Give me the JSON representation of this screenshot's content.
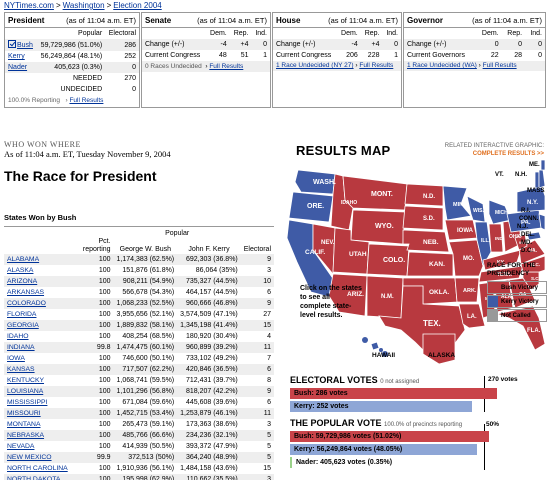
{
  "breadcrumb": {
    "site": "NYTimes.com",
    "section": "Washington",
    "page": "Election 2004",
    "sep": ">"
  },
  "president_box": {
    "title": "President",
    "as_of": "(as of 11:04 a.m. ET)",
    "col_popular": "Popular",
    "col_electoral": "Electoral",
    "rows": [
      {
        "name": "Bush",
        "popular": "59,729,986 (51.0%)",
        "electoral": "286",
        "winner": true
      },
      {
        "name": "Kerry",
        "popular": "56,249,864 (48.1%)",
        "electoral": "252"
      },
      {
        "name": "Nader",
        "popular": "405,623 (0.3%)",
        "electoral": "0"
      }
    ],
    "needed_label": "NEEDED",
    "needed": "270",
    "undecided_label": "UNDECIDED",
    "undecided": "0",
    "reporting": "100.0% Reporting",
    "full_results": "Full Results"
  },
  "senate_box": {
    "title": "Senate",
    "as_of": "(as of 11:04 a.m. ET)",
    "cols": [
      "Dem.",
      "Rep.",
      "Ind."
    ],
    "change_label": "Change (+/-)",
    "change": [
      "-4",
      "+4",
      "0"
    ],
    "current_label": "Current Congress",
    "current": [
      "48",
      "51",
      "1"
    ],
    "races_undecided": "0 Races Undecided",
    "full_results": "Full Results"
  },
  "house_box": {
    "title": "House",
    "as_of": "(as of 11:04 a.m. ET)",
    "cols": [
      "Dem.",
      "Rep.",
      "Ind."
    ],
    "change_label": "Change (+/-)",
    "change": [
      "-4",
      "+4",
      "0"
    ],
    "current_label": "Current Congress",
    "current": [
      "206",
      "228",
      "1"
    ],
    "races_undecided": "1 Race Undecided (NY 27)",
    "full_results": "Full Results"
  },
  "governor_box": {
    "title": "Governor",
    "as_of": "(as of 11:04 a.m. ET)",
    "cols": [
      "Dem.",
      "Rep.",
      "Ind."
    ],
    "change_label": "Change (+/-)",
    "change": [
      "0",
      "0",
      "0"
    ],
    "current_label": "Current Governors",
    "current": [
      "22",
      "28",
      "0"
    ],
    "races_undecided": "1 Race Undecided (WA)",
    "full_results": "Full Results"
  },
  "who_won": {
    "label": "WHO WON WHERE",
    "as_of": "As of 11:04 a.m. ET, Tuesday November 9, 2004",
    "title": "The Race for President",
    "states_label": "States Won by Bush"
  },
  "state_table": {
    "popular_header": "Popular",
    "headers": [
      "",
      "Pct. reporting",
      "George W. Bush",
      "John F. Kerry",
      "Electoral"
    ],
    "rows": [
      [
        "ALABAMA",
        "100",
        "1,174,383 (62.5%)",
        "692,303 (36.8%)",
        "9"
      ],
      [
        "ALASKA",
        "100",
        "151,876 (61.8%)",
        "86,064 (35%)",
        "3"
      ],
      [
        "ARIZONA",
        "100",
        "908,211 (54.9%)",
        "735,327 (44.5%)",
        "10"
      ],
      [
        "ARKANSAS",
        "100",
        "566,678 (54.3%)",
        "464,157 (44.5%)",
        "6"
      ],
      [
        "COLORADO",
        "100",
        "1,068,233 (52.5%)",
        "960,666 (46.8%)",
        "9"
      ],
      [
        "FLORIDA",
        "100",
        "3,955,656 (52.1%)",
        "3,574,509 (47.1%)",
        "27"
      ],
      [
        "GEORGIA",
        "100",
        "1,889,832 (58.1%)",
        "1,345,198 (41.4%)",
        "15"
      ],
      [
        "IDAHO",
        "100",
        "408,254 (68.5%)",
        "180,920 (30.4%)",
        "4"
      ],
      [
        "INDIANA",
        "99.8",
        "1,474,475 (60.1%)",
        "960,899 (39.2%)",
        "11"
      ],
      [
        "IOWA",
        "100",
        "746,600 (50.1%)",
        "733,102 (49.2%)",
        "7"
      ],
      [
        "KANSAS",
        "100",
        "717,507 (62.2%)",
        "420,846 (36.5%)",
        "6"
      ],
      [
        "KENTUCKY",
        "100",
        "1,068,741 (59.5%)",
        "712,431 (39.7%)",
        "8"
      ],
      [
        "LOUISIANA",
        "100",
        "1,101,296 (56.8%)",
        "818,207 (42.2%)",
        "9"
      ],
      [
        "MISSISSIPPI",
        "100",
        "671,084 (59.6%)",
        "445,608 (39.6%)",
        "6"
      ],
      [
        "MISSOURI",
        "100",
        "1,452,715 (53.4%)",
        "1,253,879 (46.1%)",
        "11"
      ],
      [
        "MONTANA",
        "100",
        "265,473 (59.1%)",
        "173,363 (38.6%)",
        "3"
      ],
      [
        "NEBRASKA",
        "100",
        "485,766 (66.6%)",
        "234,236 (32.1%)",
        "5"
      ],
      [
        "NEVADA",
        "100",
        "414,939 (50.5%)",
        "393,372 (47.9%)",
        "5"
      ],
      [
        "NEW MEXICO",
        "99.9",
        "372,513 (50%)",
        "364,240 (48.9%)",
        "5"
      ],
      [
        "NORTH CAROLINA",
        "100",
        "1,910,936 (56.1%)",
        "1,484,158 (43.6%)",
        "15"
      ],
      [
        "NORTH DAKOTA",
        "100",
        "195,998 (62.9%)",
        "110,662 (35.5%)",
        "3"
      ]
    ]
  },
  "results_map": {
    "title": "RESULTS MAP",
    "related_line1": "RELATED INTERACTIVE GRAPHIC:",
    "related_line2": "COMPLETE RESULTS >>",
    "click_note": "Click on the states to see all complete state-level results.",
    "hawaii": "HAWAII",
    "alaska": "ALASKA",
    "colors": {
      "bush": "#b8393f",
      "kerry": "#3f5ba6",
      "not_called": "#999999"
    },
    "state_labels": {
      "wash": "WASH.",
      "ore": "ORE.",
      "calif": "CALIF.",
      "nev": "NEV.",
      "idaho": "IDAHO",
      "mont": "MONT.",
      "wyo": "WYO.",
      "utah": "UTAH",
      "colo": "COLO.",
      "ariz": "ARIZ.",
      "nmex": "N.M.",
      "nd": "N.D.",
      "sd": "S.D.",
      "neb": "NEB.",
      "kan": "KAN.",
      "okla": "OKLA.",
      "tex": "TEX.",
      "minn": "MINN.",
      "iowa": "IOWA",
      "mo": "MO.",
      "ark": "ARK.",
      "la": "LA.",
      "wis": "WIS.",
      "ill": "ILL.",
      "mich": "MICH.",
      "ind": "IND.",
      "ohio": "OHIO",
      "ky": "KY.",
      "tenn": "TENN.",
      "miss": "MISS.",
      "ala": "ALA.",
      "ga": "GA.",
      "fla": "FLA.",
      "sc": "S.C.",
      "nc": "N.C.",
      "va": "VA.",
      "wva": "W.VA.",
      "pa": "PA.",
      "ny": "N.Y.",
      "vt": "VT.",
      "nh": "N.H.",
      "mass": "MASS.",
      "ri": "R.I.",
      "conn": "CONN.",
      "nj": "N.J.",
      "del": "DEL.",
      "md": "MD.",
      "dc": "D.C.",
      "me": "ME."
    }
  },
  "legend": {
    "title": "RACE FOR THE PRESIDENCY",
    "items": [
      {
        "label": "Bush Victory",
        "color": "#b8393f"
      },
      {
        "label": "Kerry Victory",
        "color": "#3f5ba6"
      },
      {
        "label": "Not Called",
        "color": "#999999"
      }
    ]
  },
  "electoral_votes": {
    "title": "ELECTORAL VOTES",
    "not_assigned": "0 not assigned",
    "threshold_label": "270 votes",
    "threshold": 270,
    "total": 538,
    "bars": [
      {
        "label": "Bush: 286 votes",
        "value": 286,
        "color": "#c9444a"
      },
      {
        "label": "Kerry: 252 votes",
        "value": 252,
        "color": "#8ea6d6"
      }
    ]
  },
  "popular_vote": {
    "title": "THE POPULAR VOTE",
    "reporting": "100.0% of precincts reporting",
    "threshold_label": "50%",
    "bars": [
      {
        "label": "Bush: 59,729,986 votes (51.02%)",
        "pct": 51.02,
        "color": "#c9444a"
      },
      {
        "label": "Kerry: 56,249,864 votes (48.05%)",
        "pct": 48.05,
        "color": "#8ea6d6"
      },
      {
        "label": "Nader: 405,623 votes (0.35%)",
        "pct": 0.35,
        "color": "#9bd28a"
      }
    ]
  }
}
